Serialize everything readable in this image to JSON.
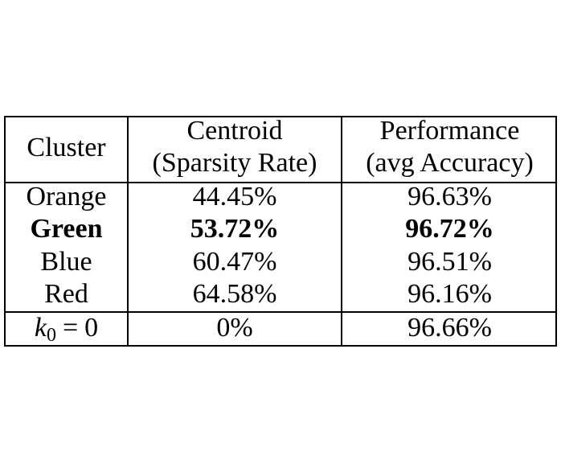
{
  "table": {
    "headers": {
      "cluster": "Cluster",
      "centroid_line1": "Centroid",
      "centroid_line2": "(Sparsity Rate)",
      "performance_line1": "Performance",
      "performance_line2": "(avg Accuracy)"
    },
    "rows": [
      {
        "cluster": "Orange",
        "sparsity": "44.45%",
        "accuracy": "96.63%",
        "bold": false
      },
      {
        "cluster": "Green",
        "sparsity": "53.72%",
        "accuracy": "96.72%",
        "bold": true
      },
      {
        "cluster": "Blue",
        "sparsity": "60.47%",
        "accuracy": "96.51%",
        "bold": false
      },
      {
        "cluster": "Red",
        "sparsity": "64.58%",
        "accuracy": "96.16%",
        "bold": false
      }
    ],
    "baseline": {
      "var": "k",
      "sub": "0",
      "op": "=",
      "val": "0",
      "sparsity": "0%",
      "accuracy": "96.66%"
    }
  }
}
